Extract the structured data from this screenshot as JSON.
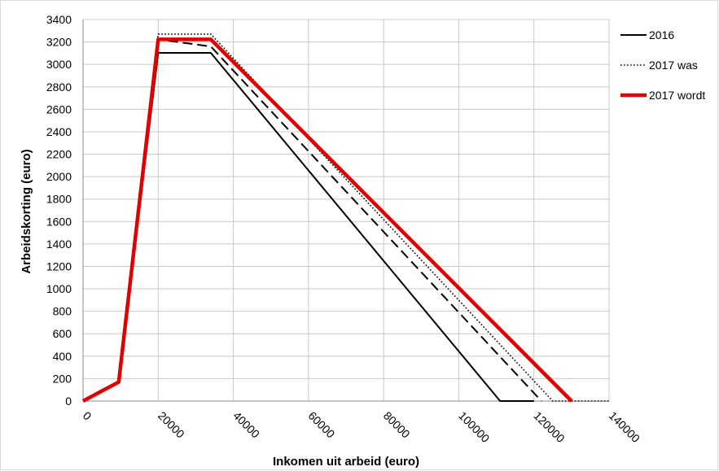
{
  "chart_data": {
    "type": "line",
    "title": "",
    "xlabel": "Inkomen uit arbeid (euro)",
    "ylabel": "Arbeidskorting (euro)",
    "xlim": [
      0,
      140000
    ],
    "ylim": [
      0,
      3400
    ],
    "xticks": [
      0,
      20000,
      40000,
      60000,
      80000,
      100000,
      120000,
      140000
    ],
    "yticks": [
      0,
      200,
      400,
      600,
      800,
      1000,
      1200,
      1400,
      1600,
      1800,
      2000,
      2200,
      2400,
      2600,
      2800,
      3000,
      3200,
      3400
    ],
    "grid": true,
    "legend_position": "right",
    "series": [
      {
        "name": "2016",
        "color": "#000000",
        "style": "solid",
        "x": [
          0,
          9500,
          20000,
          34000,
          111000,
          120000
        ],
        "y": [
          0,
          170,
          3103,
          3103,
          0,
          0
        ]
      },
      {
        "name": "2017 was",
        "color": "#000000",
        "style": "dotted",
        "x": [
          0,
          9500,
          20000,
          34000,
          125000,
          140000
        ],
        "y": [
          0,
          170,
          3270,
          3270,
          0,
          0
        ]
      },
      {
        "name": "",
        "color": "#000000",
        "style": "dashed",
        "x": [
          0,
          9500,
          20000,
          34000,
          122000
        ],
        "y": [
          0,
          170,
          3223,
          3160,
          0
        ]
      },
      {
        "name": "2017 wordt",
        "color": "#e00000",
        "style": "thick",
        "x": [
          0,
          9500,
          20000,
          34000,
          130000
        ],
        "y": [
          0,
          170,
          3223,
          3223,
          0
        ]
      }
    ]
  }
}
